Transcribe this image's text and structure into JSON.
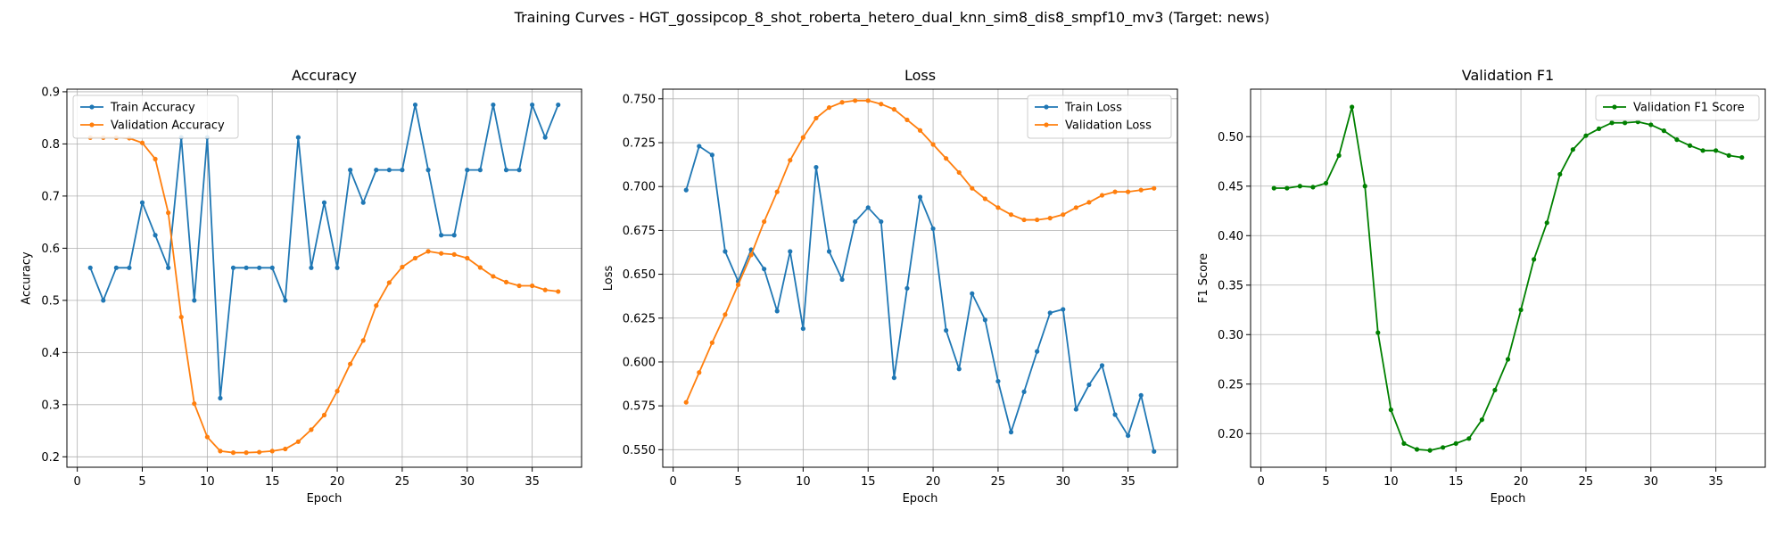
{
  "figure_title": "Training Curves - HGT_gossipcop_8_shot_roberta_hetero_dual_knn_sim8_dis8_smpf10_mv3 (Target: news)",
  "chart_data": [
    {
      "type": "line",
      "title": "Accuracy",
      "xlabel": "Epoch",
      "ylabel": "Accuracy",
      "xlim": [
        -0.8,
        38.8
      ],
      "ylim": [
        0.18,
        0.905
      ],
      "xticks": [
        0,
        5,
        10,
        15,
        20,
        25,
        30,
        35
      ],
      "yticks": [
        0.2,
        0.3,
        0.4,
        0.5,
        0.6,
        0.7,
        0.8,
        0.9
      ],
      "ytick_labels": [
        "0.2",
        "0.3",
        "0.4",
        "0.5",
        "0.6",
        "0.7",
        "0.8",
        "0.9"
      ],
      "grid": true,
      "legend": "top-left",
      "x": [
        1,
        2,
        3,
        4,
        5,
        6,
        7,
        8,
        9,
        10,
        11,
        12,
        13,
        14,
        15,
        16,
        17,
        18,
        19,
        20,
        21,
        22,
        23,
        24,
        25,
        26,
        27,
        28,
        29,
        30,
        31,
        32,
        33,
        34,
        35,
        36,
        37
      ],
      "series": [
        {
          "name": "Train Accuracy",
          "color": "#1f77b4",
          "values": [
            0.5625,
            0.5,
            0.5625,
            0.5625,
            0.6875,
            0.625,
            0.5625,
            0.8125,
            0.5,
            0.8125,
            0.3125,
            0.5625,
            0.5625,
            0.5625,
            0.5625,
            0.5,
            0.8125,
            0.5625,
            0.6875,
            0.5625,
            0.75,
            0.6875,
            0.75,
            0.75,
            0.75,
            0.875,
            0.75,
            0.625,
            0.625,
            0.75,
            0.75,
            0.875,
            0.75,
            0.75,
            0.875,
            0.8125,
            0.875
          ]
        },
        {
          "name": "Validation Accuracy",
          "color": "#ff7f0e",
          "values": [
            0.812,
            0.812,
            0.812,
            0.811,
            0.802,
            0.771,
            0.668,
            0.468,
            0.302,
            0.238,
            0.211,
            0.208,
            0.208,
            0.209,
            0.211,
            0.215,
            0.229,
            0.252,
            0.28,
            0.326,
            0.378,
            0.423,
            0.49,
            0.534,
            0.564,
            0.581,
            0.594,
            0.59,
            0.588,
            0.581,
            0.563,
            0.546,
            0.535,
            0.528,
            0.528,
            0.52,
            0.517
          ]
        }
      ]
    },
    {
      "type": "line",
      "title": "Loss",
      "xlabel": "Epoch",
      "ylabel": "Loss",
      "xlim": [
        -0.8,
        38.8
      ],
      "ylim": [
        0.54,
        0.7555
      ],
      "xticks": [
        0,
        5,
        10,
        15,
        20,
        25,
        30,
        35
      ],
      "yticks": [
        0.55,
        0.575,
        0.6,
        0.625,
        0.65,
        0.675,
        0.7,
        0.725,
        0.75
      ],
      "ytick_labels": [
        "0.550",
        "0.575",
        "0.600",
        "0.625",
        "0.650",
        "0.675",
        "0.700",
        "0.725",
        "0.750"
      ],
      "grid": true,
      "legend": "top-right",
      "x": [
        1,
        2,
        3,
        4,
        5,
        6,
        7,
        8,
        9,
        10,
        11,
        12,
        13,
        14,
        15,
        16,
        17,
        18,
        19,
        20,
        21,
        22,
        23,
        24,
        25,
        26,
        27,
        28,
        29,
        30,
        31,
        32,
        33,
        34,
        35,
        36,
        37
      ],
      "series": [
        {
          "name": "Train Loss",
          "color": "#1f77b4",
          "values": [
            0.698,
            0.723,
            0.718,
            0.663,
            0.646,
            0.664,
            0.653,
            0.629,
            0.663,
            0.619,
            0.711,
            0.663,
            0.647,
            0.68,
            0.688,
            0.68,
            0.591,
            0.642,
            0.694,
            0.676,
            0.618,
            0.596,
            0.639,
            0.624,
            0.589,
            0.56,
            0.583,
            0.606,
            0.628,
            0.63,
            0.573,
            0.587,
            0.598,
            0.57,
            0.558,
            0.581,
            0.549
          ]
        },
        {
          "name": "Validation Loss",
          "color": "#ff7f0e",
          "values": [
            0.577,
            0.594,
            0.611,
            0.627,
            0.644,
            0.661,
            0.68,
            0.697,
            0.715,
            0.728,
            0.739,
            0.745,
            0.748,
            0.749,
            0.749,
            0.747,
            0.744,
            0.738,
            0.732,
            0.724,
            0.716,
            0.708,
            0.699,
            0.693,
            0.688,
            0.684,
            0.681,
            0.681,
            0.682,
            0.684,
            0.688,
            0.691,
            0.695,
            0.697,
            0.697,
            0.698,
            0.699
          ]
        }
      ]
    },
    {
      "type": "line",
      "title": "Validation F1",
      "xlabel": "Epoch",
      "ylabel": "F1 Score",
      "xlim": [
        -0.8,
        38.8
      ],
      "ylim": [
        0.166,
        0.548
      ],
      "xticks": [
        0,
        5,
        10,
        15,
        20,
        25,
        30,
        35
      ],
      "yticks": [
        0.2,
        0.25,
        0.3,
        0.35,
        0.4,
        0.45,
        0.5
      ],
      "ytick_labels": [
        "0.20",
        "0.25",
        "0.30",
        "0.35",
        "0.40",
        "0.45",
        "0.50"
      ],
      "grid": true,
      "legend": "top-right",
      "x": [
        1,
        2,
        3,
        4,
        5,
        6,
        7,
        8,
        9,
        10,
        11,
        12,
        13,
        14,
        15,
        16,
        17,
        18,
        19,
        20,
        21,
        22,
        23,
        24,
        25,
        26,
        27,
        28,
        29,
        30,
        31,
        32,
        33,
        34,
        35,
        36,
        37
      ],
      "series": [
        {
          "name": "Validation F1 Score",
          "color": "#008000",
          "values": [
            0.448,
            0.448,
            0.45,
            0.449,
            0.453,
            0.481,
            0.53,
            0.45,
            0.302,
            0.224,
            0.19,
            0.184,
            0.183,
            0.186,
            0.19,
            0.195,
            0.214,
            0.244,
            0.275,
            0.325,
            0.376,
            0.413,
            0.462,
            0.487,
            0.501,
            0.508,
            0.514,
            0.514,
            0.515,
            0.512,
            0.506,
            0.497,
            0.491,
            0.486,
            0.486,
            0.481,
            0.479
          ]
        }
      ]
    }
  ]
}
